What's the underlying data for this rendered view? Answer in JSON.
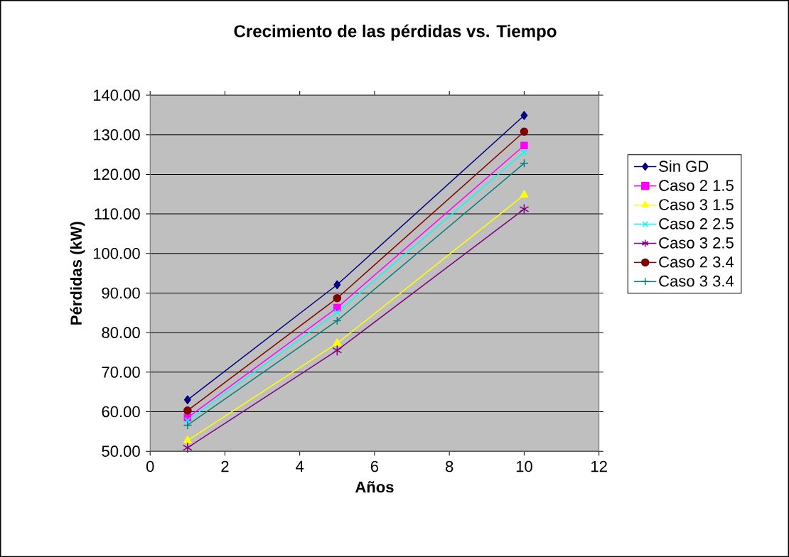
{
  "chart_data": {
    "type": "line",
    "title": "Crecimiento de las pérdidas vs. Tiempo",
    "xlabel": "Años",
    "ylabel": "Pérdidas (kW)",
    "x": [
      1,
      5,
      10
    ],
    "series": [
      {
        "name": "Sin GD",
        "color": "#000080",
        "marker": "diamond",
        "values": [
          63.0,
          92.1,
          134.9
        ]
      },
      {
        "name": "Caso 2 1.5",
        "color": "#ff00ff",
        "marker": "square",
        "values": [
          58.5,
          86.3,
          127.3
        ]
      },
      {
        "name": "Caso 3 1.5",
        "color": "#ffff00",
        "marker": "triangle",
        "values": [
          52.7,
          77.3,
          114.8
        ]
      },
      {
        "name": "Caso 2 2.5",
        "color": "#00ffff",
        "marker": "cross",
        "values": [
          57.8,
          85.1,
          125.6
        ]
      },
      {
        "name": "Caso 3 2.5",
        "color": "#800080",
        "marker": "cross",
        "values": [
          50.9,
          75.5,
          111.2
        ]
      },
      {
        "name": "Caso 2 3.4",
        "color": "#800000",
        "marker": "circle",
        "values": [
          60.3,
          88.7,
          130.8
        ]
      },
      {
        "name": "Caso 3 3.4",
        "color": "#008080",
        "marker": "plus",
        "values": [
          56.6,
          83.0,
          122.8
        ]
      }
    ],
    "xlim": [
      0,
      12
    ],
    "ylim": [
      50,
      140
    ],
    "xticks": [
      0,
      2,
      4,
      6,
      8,
      10,
      12
    ],
    "yticks": [
      {
        "value": 50,
        "label": "50.00"
      },
      {
        "value": 60,
        "label": "60.00"
      },
      {
        "value": 70,
        "label": "70.00"
      },
      {
        "value": 80,
        "label": "80.00"
      },
      {
        "value": 90,
        "label": "90.00"
      },
      {
        "value": 100,
        "label": "100.00"
      },
      {
        "value": 110,
        "label": "110.00"
      },
      {
        "value": 120,
        "label": "120.00"
      },
      {
        "value": 130,
        "label": "130.00"
      },
      {
        "value": 140,
        "label": "140.00"
      }
    ],
    "grid": "y",
    "legend": "right",
    "line_style": "solid"
  }
}
